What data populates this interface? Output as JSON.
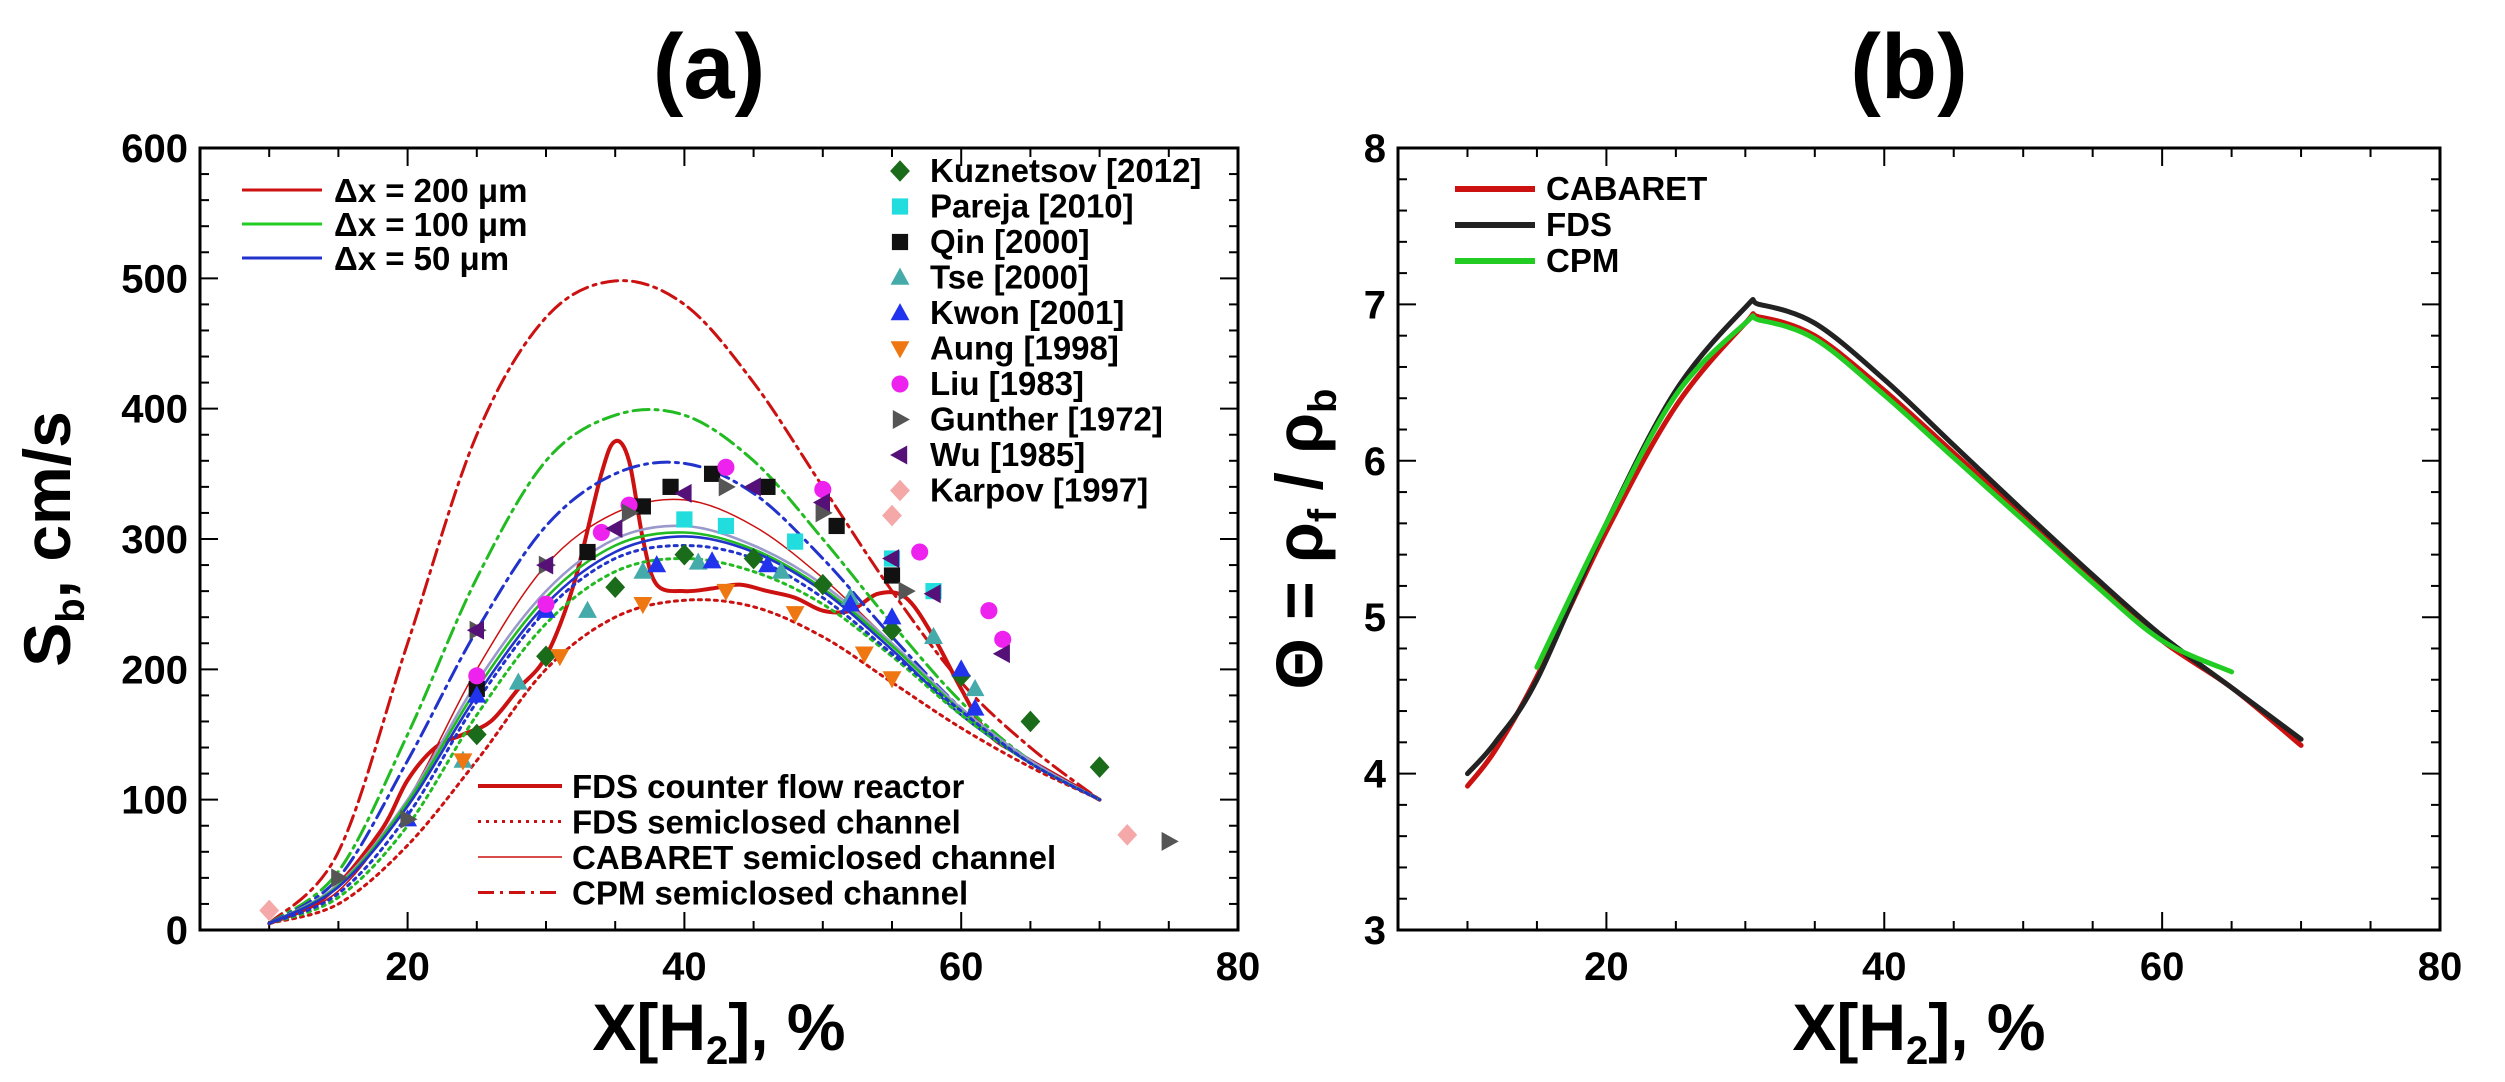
{
  "chart_data": [
    {
      "type": "line",
      "panel_label": "(a)",
      "ylabel_main": "S",
      "ylabel_sub": "b",
      "ylabel_rest": ", cm/s",
      "xlabel_main": "X[H",
      "xlabel_sub": "2",
      "xlabel_rest": "], %",
      "xlim": [
        5,
        80
      ],
      "ylim": [
        0,
        600
      ],
      "xticks": [
        20,
        40,
        60,
        80
      ],
      "yticks": [
        0,
        100,
        200,
        300,
        400,
        500,
        600
      ],
      "resolution_legend": [
        {
          "label": "Δx = 200 μm",
          "color": "#cc1111"
        },
        {
          "label": "Δx = 100 μm",
          "color": "#22cc22"
        },
        {
          "label": "Δx = 50 μm",
          "color": "#2233cc"
        }
      ],
      "model_legend": [
        {
          "label": "FDS counter flow reactor",
          "style": "solid-thick"
        },
        {
          "label": "FDS semiclosed channel",
          "style": "dotted"
        },
        {
          "label": "CABARET semiclosed channel",
          "style": "solid-thin"
        },
        {
          "label": "CPM semiclosed channel",
          "style": "dashdot"
        }
      ],
      "series": [
        {
          "name": "FDS counter flow reactor",
          "style": "solid-thick",
          "color": "#cc1111",
          "x": [
            10,
            14,
            18,
            20,
            22,
            24,
            26,
            28,
            30,
            32,
            34,
            35,
            36,
            37,
            38,
            40,
            42,
            44,
            46,
            48,
            50,
            52,
            54,
            56,
            58,
            60,
            62,
            65,
            70
          ],
          "y": [
            5,
            25,
            75,
            115,
            140,
            150,
            160,
            185,
            210,
            265,
            350,
            375,
            360,
            300,
            265,
            260,
            262,
            265,
            260,
            255,
            245,
            245,
            258,
            255,
            225,
            185,
            150,
            130,
            100
          ]
        },
        {
          "name": "FDS semiclosed channel",
          "style": "dotted",
          "color": "#cc1111",
          "x": [
            10,
            15,
            20,
            25,
            30,
            35,
            40,
            45,
            50,
            55,
            60,
            65,
            70
          ],
          "y": [
            5,
            20,
            65,
            130,
            200,
            240,
            253,
            248,
            225,
            190,
            155,
            125,
            100
          ]
        },
        {
          "name": "CABARET semiclosed channel",
          "style": "solid-thin",
          "color": "#cc1111",
          "x": [
            10,
            15,
            20,
            25,
            30,
            35,
            40,
            45,
            50,
            55,
            60,
            65,
            70
          ],
          "y": [
            5,
            30,
            100,
            200,
            280,
            320,
            330,
            310,
            270,
            220,
            170,
            130,
            100
          ]
        },
        {
          "name": "CPM 200",
          "style": "dashdot",
          "color": "#cc1111",
          "x": [
            10,
            15,
            20,
            25,
            30,
            35,
            40,
            45,
            50,
            55,
            60,
            65,
            70
          ],
          "y": [
            5,
            60,
            220,
            380,
            470,
            498,
            480,
            420,
            340,
            260,
            190,
            140,
            100
          ]
        },
        {
          "name": "CPM 100",
          "style": "dashdot",
          "color": "#22bb22",
          "x": [
            10,
            15,
            20,
            25,
            30,
            35,
            40,
            45,
            50,
            55,
            60,
            65,
            70
          ],
          "y": [
            5,
            45,
            150,
            270,
            360,
            395,
            395,
            360,
            300,
            235,
            175,
            130,
            100
          ]
        },
        {
          "name": "CPM 50",
          "style": "dashdot",
          "color": "#2233cc",
          "x": [
            10,
            15,
            20,
            25,
            30,
            35,
            40,
            45,
            50,
            55,
            60,
            65,
            70
          ],
          "y": [
            5,
            40,
            130,
            230,
            310,
            350,
            358,
            335,
            285,
            225,
            170,
            130,
            100
          ]
        },
        {
          "name": "CABARET 200",
          "style": "solid",
          "color": "#9999cc",
          "x": [
            10,
            15,
            20,
            25,
            30,
            35,
            40,
            45,
            50,
            55,
            60,
            65,
            70
          ],
          "y": [
            5,
            35,
            100,
            190,
            260,
            300,
            310,
            295,
            265,
            220,
            170,
            130,
            100
          ]
        },
        {
          "name": "CABARET 100",
          "style": "solid",
          "color": "#22bb22",
          "x": [
            10,
            15,
            20,
            25,
            30,
            35,
            40,
            45,
            50,
            55,
            60,
            65,
            70
          ],
          "y": [
            5,
            34,
            98,
            185,
            255,
            295,
            305,
            292,
            262,
            218,
            168,
            128,
            100
          ]
        },
        {
          "name": "CABARET 50",
          "style": "solid",
          "color": "#2233cc",
          "x": [
            10,
            15,
            20,
            25,
            30,
            35,
            40,
            45,
            50,
            55,
            60,
            65,
            70
          ],
          "y": [
            5,
            33,
            95,
            180,
            250,
            290,
            302,
            290,
            260,
            215,
            165,
            128,
            100
          ]
        },
        {
          "name": "FDS 100",
          "style": "dotted",
          "color": "#22bb22",
          "x": [
            10,
            15,
            20,
            25,
            30,
            35,
            40,
            45,
            50,
            55,
            60,
            65,
            70
          ],
          "y": [
            5,
            25,
            80,
            165,
            235,
            275,
            285,
            275,
            250,
            210,
            165,
            128,
            100
          ]
        },
        {
          "name": "FDS 50",
          "style": "dotted",
          "color": "#2233cc",
          "x": [
            10,
            15,
            20,
            25,
            30,
            35,
            40,
            45,
            50,
            55,
            60,
            65,
            70
          ],
          "y": [
            5,
            28,
            88,
            175,
            245,
            285,
            295,
            285,
            255,
            212,
            168,
            128,
            100
          ]
        }
      ],
      "experiments": [
        {
          "label": "Kuznetsov [2012]",
          "marker": "diamond",
          "color": "#1a6b1a",
          "points": [
            [
              25,
              150
            ],
            [
              30,
              210
            ],
            [
              35,
              263
            ],
            [
              40,
              288
            ],
            [
              45,
              285
            ],
            [
              50,
              265
            ],
            [
              55,
              230
            ],
            [
              60,
              195
            ],
            [
              65,
              160
            ],
            [
              70,
              125
            ]
          ]
        },
        {
          "label": "Pareja [2010]",
          "marker": "square",
          "color": "#22dddd",
          "points": [
            [
              40,
              315
            ],
            [
              43,
              310
            ],
            [
              48,
              298
            ],
            [
              55,
              285
            ],
            [
              58,
              260
            ]
          ]
        },
        {
          "label": "Qin [2000]",
          "marker": "square",
          "color": "#111111",
          "points": [
            [
              25,
              185
            ],
            [
              33,
              290
            ],
            [
              37,
              325
            ],
            [
              39,
              340
            ],
            [
              42,
              350
            ],
            [
              46,
              340
            ],
            [
              51,
              310
            ],
            [
              55,
              272
            ]
          ]
        },
        {
          "label": "Tse [2000]",
          "marker": "triangle-up",
          "color": "#44aaaa",
          "points": [
            [
              24,
              130
            ],
            [
              28,
              190
            ],
            [
              33,
              245
            ],
            [
              37,
              275
            ],
            [
              41,
              282
            ],
            [
              47,
              275
            ],
            [
              52,
              255
            ],
            [
              58,
              225
            ],
            [
              61,
              185
            ]
          ]
        },
        {
          "label": "Kwon [2001]",
          "marker": "triangle-up",
          "color": "#2233ee",
          "points": [
            [
              20,
              85
            ],
            [
              25,
              180
            ],
            [
              30,
              245
            ],
            [
              38,
              280
            ],
            [
              42,
              283
            ],
            [
              46,
              280
            ],
            [
              52,
              250
            ],
            [
              55,
              240
            ],
            [
              60,
              200
            ],
            [
              61,
              170
            ]
          ]
        },
        {
          "label": "Aung [1998]",
          "marker": "triangle-down",
          "color": "#ee7711",
          "points": [
            [
              24,
              130
            ],
            [
              31,
              210
            ],
            [
              37,
              250
            ],
            [
              43,
              260
            ],
            [
              48,
              243
            ],
            [
              53,
              212
            ],
            [
              55,
              193
            ]
          ]
        },
        {
          "label": "Liu [1983]",
          "marker": "circle",
          "color": "#ee22ee",
          "points": [
            [
              25,
              195
            ],
            [
              30,
              250
            ],
            [
              34,
              305
            ],
            [
              36,
              326
            ],
            [
              43,
              355
            ],
            [
              50,
              338
            ],
            [
              57,
              290
            ],
            [
              62,
              245
            ],
            [
              63,
              223
            ]
          ]
        },
        {
          "label": "Gunther [1972]",
          "marker": "triangle-right",
          "color": "#555555",
          "points": [
            [
              15,
              40
            ],
            [
              20,
              85
            ],
            [
              25,
              230
            ],
            [
              30,
              280
            ],
            [
              36,
              320
            ],
            [
              43,
              340
            ],
            [
              50,
              320
            ],
            [
              56,
              260
            ],
            [
              75,
              68
            ]
          ]
        },
        {
          "label": "Wu [1985]",
          "marker": "triangle-left",
          "color": "#551177",
          "points": [
            [
              25,
              230
            ],
            [
              30,
              280
            ],
            [
              35,
              308
            ],
            [
              40,
              335
            ],
            [
              45,
              340
            ],
            [
              50,
              328
            ],
            [
              55,
              285
            ],
            [
              58,
              258
            ],
            [
              63,
              212
            ]
          ]
        },
        {
          "label": "Karpov [1997]",
          "marker": "diamond",
          "color": "#f4a8a8",
          "points": [
            [
              10,
              15
            ],
            [
              55,
              318
            ],
            [
              72,
              73
            ]
          ]
        }
      ]
    },
    {
      "type": "line",
      "panel_label": "(b)",
      "ylabel_parts": [
        "Θ = ρ",
        "f",
        " / ρ",
        "b"
      ],
      "xlabel_main": "X[H",
      "xlabel_sub": "2",
      "xlabel_rest": "], %",
      "xlim": [
        5,
        80
      ],
      "ylim": [
        3,
        8
      ],
      "xticks": [
        20,
        40,
        60,
        80
      ],
      "yticks": [
        3,
        4,
        5,
        6,
        7,
        8
      ],
      "series": [
        {
          "name": "CABARET",
          "color": "#cc1111",
          "x": [
            10,
            12,
            15,
            20,
            25,
            30,
            31,
            35,
            40,
            45,
            50,
            55,
            60,
            65,
            70
          ],
          "y": [
            3.92,
            4.15,
            4.62,
            5.55,
            6.35,
            6.88,
            6.92,
            6.8,
            6.45,
            6.05,
            5.65,
            5.25,
            4.85,
            4.55,
            4.18
          ]
        },
        {
          "name": "FDS",
          "color": "#222222",
          "x": [
            10,
            12,
            15,
            20,
            25,
            30,
            31,
            35,
            40,
            45,
            50,
            55,
            60,
            65,
            70
          ],
          "y": [
            4.0,
            4.2,
            4.6,
            5.6,
            6.45,
            6.98,
            7.0,
            6.88,
            6.52,
            6.1,
            5.68,
            5.27,
            4.88,
            4.55,
            4.22
          ]
        },
        {
          "name": "CPM",
          "color": "#22cc22",
          "x": [
            15,
            20,
            25,
            30,
            31,
            35,
            40,
            45,
            50,
            55,
            60,
            65
          ],
          "y": [
            4.68,
            5.6,
            6.42,
            6.88,
            6.9,
            6.78,
            6.42,
            6.02,
            5.62,
            5.22,
            4.85,
            4.65
          ]
        }
      ]
    }
  ]
}
